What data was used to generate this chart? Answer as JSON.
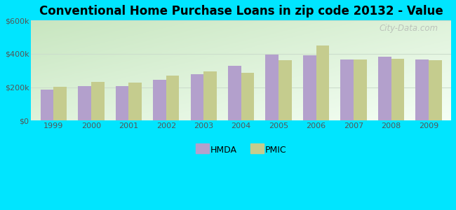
{
  "title": "Conventional Home Purchase Loans in zip code 20132 - Value",
  "years": [
    1999,
    2000,
    2001,
    2002,
    2003,
    2004,
    2005,
    2006,
    2007,
    2008,
    2009
  ],
  "hmda_values": [
    185000,
    205000,
    207000,
    245000,
    278000,
    330000,
    395000,
    390000,
    365000,
    383000,
    368000
  ],
  "pmic_values": [
    203000,
    230000,
    228000,
    268000,
    295000,
    285000,
    363000,
    450000,
    365000,
    370000,
    363000
  ],
  "hmda_color": "#b3a0cc",
  "pmic_color": "#c5cc8e",
  "bar_width": 0.35,
  "ylim": [
    0,
    600000
  ],
  "yticks": [
    0,
    200000,
    400000,
    600000
  ],
  "ytick_labels": [
    "$0",
    "$200k",
    "$400k",
    "$600k"
  ],
  "outer_bg": "#00e5ff",
  "title_fontsize": 12,
  "legend_labels": [
    "HMDA",
    "PMIC"
  ],
  "watermark": "City-Data.com",
  "grid_color": "#ccddcc",
  "bg_topleft": "#c8e6c0",
  "bg_topright": "#e8f4e8",
  "bg_bottomleft": "#ddeedd",
  "bg_bottomright": "#f4fff4"
}
